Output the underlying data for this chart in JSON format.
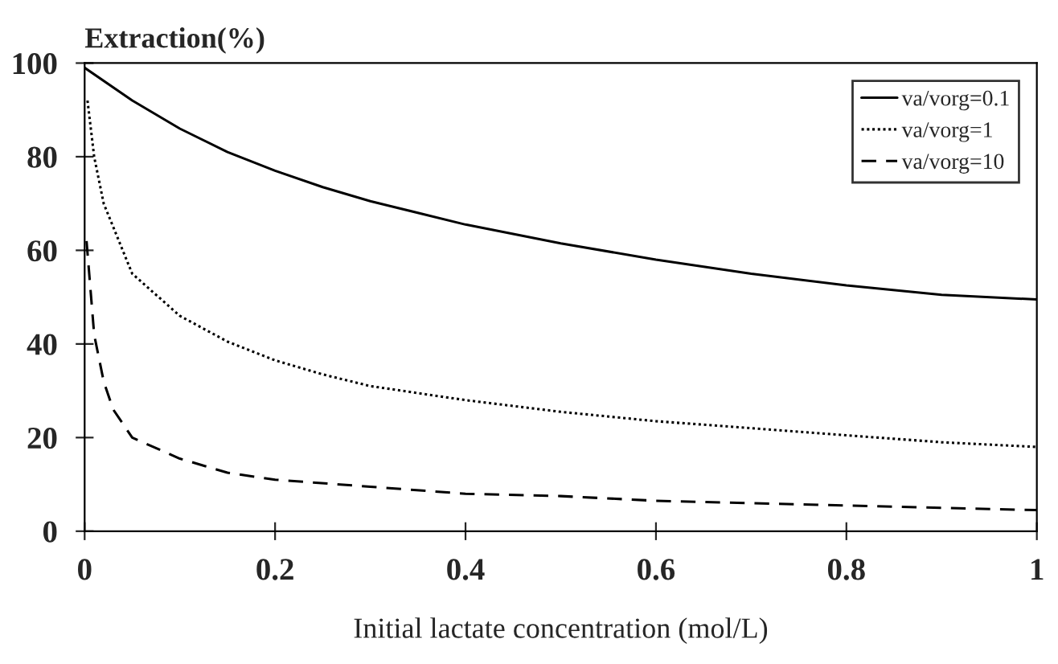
{
  "chart_data": {
    "type": "line",
    "ylabel": "Extraction(%)",
    "xlabel": "Initial lactate concentration (mol/L)",
    "xlim": [
      0,
      1
    ],
    "xticks": [
      0,
      0.2,
      0.4,
      0.6,
      0.8,
      1
    ],
    "ylim": [
      0,
      100
    ],
    "yticks": [
      0,
      20,
      40,
      60,
      80,
      100
    ],
    "grid": false,
    "legend": "top right",
    "marker": "none",
    "series": [
      {
        "name": "va/vorg=0.1",
        "color": "#000000",
        "line_style": "solid",
        "x": [
          0,
          0.05,
          0.1,
          0.15,
          0.2,
          0.25,
          0.3,
          0.4,
          0.5,
          0.6,
          0.7,
          0.8,
          0.9,
          1
        ],
        "values": [
          99,
          92,
          86,
          81,
          77,
          73.5,
          70.5,
          65.5,
          61.5,
          58,
          55,
          52.5,
          50.5,
          49.5
        ]
      },
      {
        "name": "va/vorg=1",
        "color": "#000000",
        "line_style": "dotted",
        "x": [
          0.003,
          0.01,
          0.02,
          0.05,
          0.1,
          0.15,
          0.2,
          0.25,
          0.3,
          0.4,
          0.5,
          0.6,
          0.7,
          0.8,
          0.9,
          1
        ],
        "values": [
          92,
          80,
          70,
          55,
          46,
          40.5,
          36.5,
          33.5,
          31,
          28,
          25.5,
          23.5,
          22,
          20.5,
          19,
          18
        ]
      },
      {
        "name": "va/vorg=10",
        "color": "#000000",
        "line_style": "dashed",
        "x": [
          0.002,
          0.01,
          0.02,
          0.03,
          0.05,
          0.1,
          0.15,
          0.2,
          0.3,
          0.4,
          0.5,
          0.6,
          0.8,
          1
        ],
        "values": [
          62,
          42,
          32,
          26,
          20,
          15.5,
          12.5,
          11,
          9.5,
          8,
          7.5,
          6.5,
          5.5,
          4.5
        ]
      }
    ]
  }
}
